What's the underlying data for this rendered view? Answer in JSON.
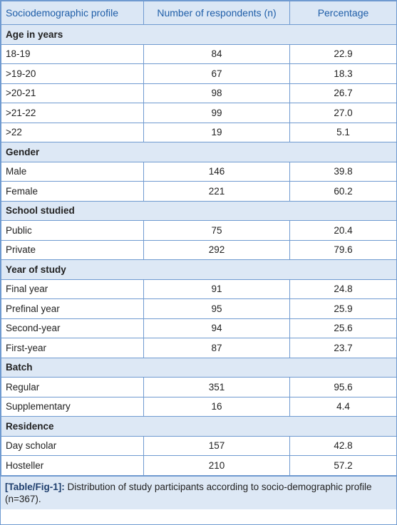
{
  "table": {
    "columns": [
      "Sociodemographic profile",
      "Number of respondents (n)",
      "Percentage"
    ],
    "sections": [
      {
        "title": "Age in years",
        "rows": [
          [
            "18-19",
            "84",
            "22.9"
          ],
          [
            ">19-20",
            "67",
            "18.3"
          ],
          [
            ">20-21",
            "98",
            "26.7"
          ],
          [
            ">21-22",
            "99",
            "27.0"
          ],
          [
            ">22",
            "19",
            "5.1"
          ]
        ]
      },
      {
        "title": "Gender",
        "rows": [
          [
            "Male",
            "146",
            "39.8"
          ],
          [
            "Female",
            "221",
            "60.2"
          ]
        ]
      },
      {
        "title": "School studied",
        "rows": [
          [
            "Public",
            "75",
            "20.4"
          ],
          [
            "Private",
            "292",
            "79.6"
          ]
        ]
      },
      {
        "title": "Year of study",
        "rows": [
          [
            "Final year",
            "91",
            "24.8"
          ],
          [
            "Prefinal year",
            "95",
            "25.9"
          ],
          [
            "Second-year",
            "94",
            "25.6"
          ],
          [
            "First-year",
            "87",
            "23.7"
          ]
        ]
      },
      {
        "title": "Batch",
        "rows": [
          [
            "Regular",
            "351",
            "95.6"
          ],
          [
            "Supplementary",
            "16",
            "4.4"
          ]
        ]
      },
      {
        "title": "Residence",
        "rows": [
          [
            "Day scholar",
            "157",
            "42.8"
          ],
          [
            "Hosteller",
            "210",
            "57.2"
          ]
        ]
      }
    ]
  },
  "caption": {
    "label": "[Table/Fig-1]:",
    "text": "Distribution of study participants according to socio-demographic profile (n=367)."
  }
}
